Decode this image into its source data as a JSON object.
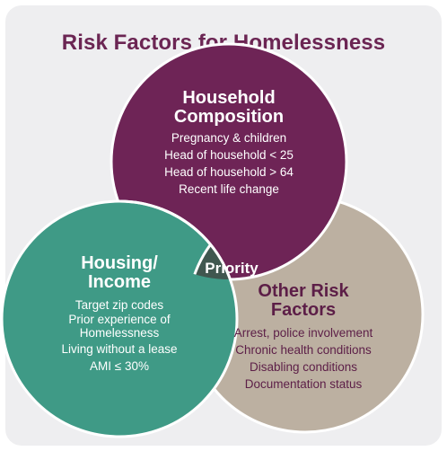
{
  "title": "Risk Factors for Homelessness",
  "colors": {
    "household": "#6e2456",
    "housing": "#3f9a86",
    "other": "#bcb0a1",
    "priority": "#40574f",
    "title": "#6b2553",
    "background": "#eeeef0"
  },
  "household": {
    "title_line1": "Household",
    "title_line2": "Composition",
    "items": [
      "Pregnancy & children",
      "Head of household < 25",
      "Head of household > 64",
      "Recent life change"
    ]
  },
  "housing": {
    "title_line1": "Housing/",
    "title_line2": "Income",
    "items": [
      "Target zip codes",
      "Prior experience of",
      "Homelessness",
      "Living without a lease",
      "AMI ≤ 30%"
    ]
  },
  "other": {
    "title_line1": "Other Risk",
    "title_line2": "Factors",
    "items": [
      "Arrest, police involvement",
      "Chronic health conditions",
      "Disabling conditions",
      "Documentation status"
    ]
  },
  "priority": "Priority"
}
